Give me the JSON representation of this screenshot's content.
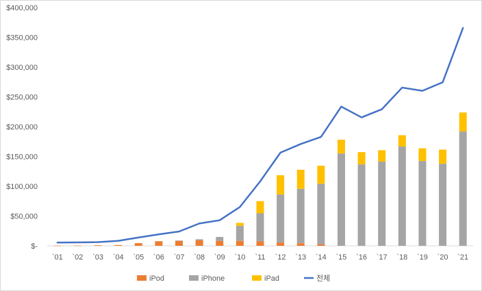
{
  "chart_data": {
    "type": "bar",
    "stacked": true,
    "categories": [
      "`01",
      "`02",
      "`03",
      "`04",
      "`05",
      "`06",
      "`07",
      "`08",
      "`09",
      "`10",
      "`11",
      "`12",
      "`13",
      "`14",
      "`15",
      "`16",
      "`17",
      "`18",
      "`19",
      "`20",
      "`21"
    ],
    "series": [
      {
        "name": "iPod",
        "kind": "bar",
        "color": "#ed7d31",
        "values": [
          200,
          500,
          1000,
          1300,
          4500,
          7700,
          8300,
          9200,
          8100,
          8300,
          7500,
          5600,
          4400,
          2300,
          0,
          0,
          0,
          0,
          0,
          0,
          0
        ]
      },
      {
        "name": "iPhone",
        "kind": "bar",
        "color": "#a5a5a5",
        "values": [
          0,
          0,
          0,
          0,
          0,
          0,
          600,
          1800,
          6800,
          25200,
          47100,
          80500,
          91300,
          101900,
          155000,
          136700,
          141300,
          166700,
          142400,
          137800,
          191900
        ]
      },
      {
        "name": "iPad",
        "kind": "bar",
        "color": "#ffc000",
        "values": [
          0,
          0,
          0,
          0,
          0,
          0,
          0,
          0,
          0,
          5000,
          20400,
          32400,
          31900,
          30300,
          23200,
          20600,
          19200,
          19000,
          21300,
          23700,
          31900
        ]
      },
      {
        "name": "전체",
        "kind": "line",
        "color": "#4472c4",
        "values": [
          5400,
          5700,
          6200,
          8300,
          13900,
          19300,
          24000,
          37500,
          42900,
          65200,
          108200,
          156500,
          170900,
          182800,
          233700,
          215600,
          229200,
          265600,
          260200,
          274500,
          365800
        ]
      }
    ],
    "y_ticks": [
      "$-",
      "$50,000",
      "$100,000",
      "$150,000",
      "$200,000",
      "$250,000",
      "$300,000",
      "$350,000",
      "$400,000"
    ],
    "ylim": [
      0,
      400000
    ],
    "ytick_step": 50000,
    "grid": false,
    "legend_position": "bottom",
    "xlabel": "",
    "ylabel": ""
  }
}
